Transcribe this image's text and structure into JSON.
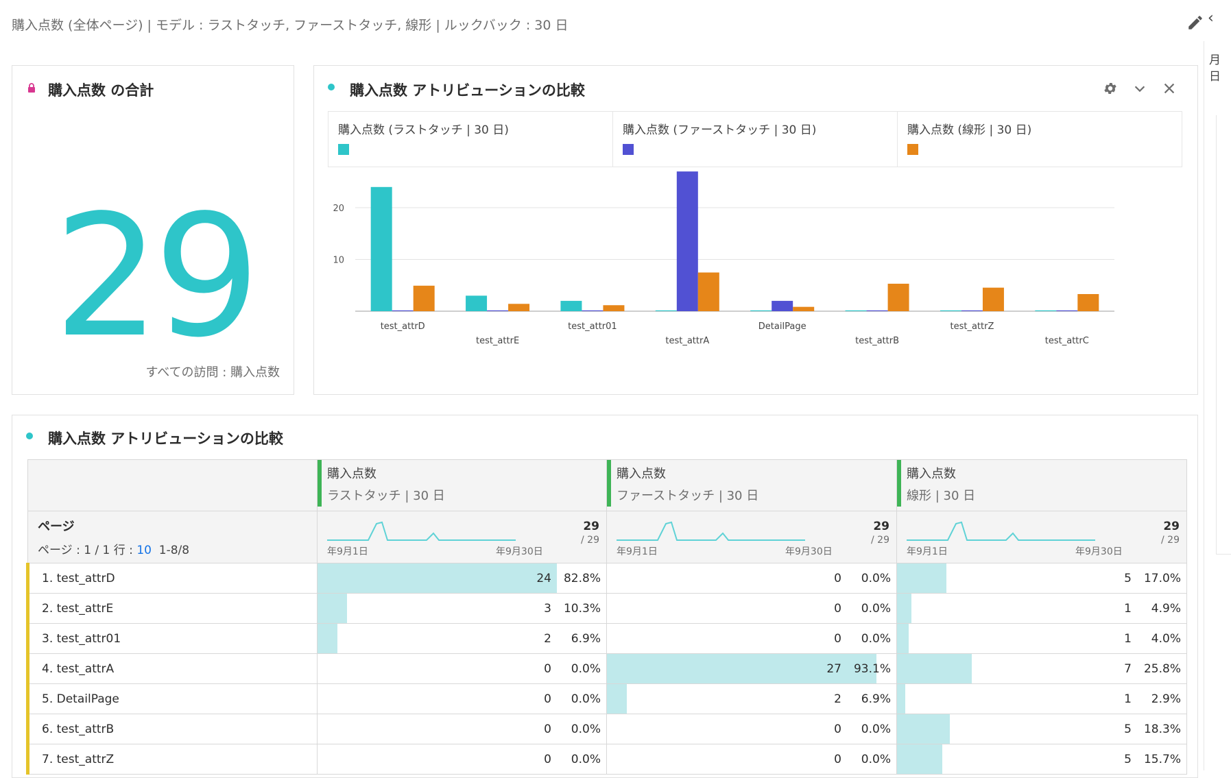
{
  "header": {
    "title": "購入点数 (全体ページ) | モデル : ラストタッチ, ファーストタッチ, 線形 | ルックバック : 30 日"
  },
  "rail": {
    "calendar_line1": "月",
    "calendar_line2": "日"
  },
  "summary": {
    "title": "購入点数 の合計",
    "value": "29",
    "footer": "すべての訪問 : 購入点数"
  },
  "chart_panel": {
    "title": "購入点数 アトリビューションの比較",
    "legend": [
      {
        "label": "購入点数 (ラストタッチ | 30 日)",
        "color": "#2ec5c9"
      },
      {
        "label": "購入点数 (ファーストタッチ | 30 日)",
        "color": "#5151d3"
      },
      {
        "label": "購入点数 (線形 | 30 日)",
        "color": "#e68619"
      }
    ]
  },
  "chart_data": {
    "type": "bar",
    "categories": [
      "test_attrD",
      "test_attrE",
      "test_attr01",
      "test_attrA",
      "DetailPage",
      "test_attrB",
      "test_attrZ",
      "test_attrC"
    ],
    "series": [
      {
        "name": "購入点数 (ラストタッチ | 30 日)",
        "color": "#2ec5c9",
        "values": [
          24,
          3,
          2,
          0,
          0,
          0,
          0,
          0
        ]
      },
      {
        "name": "購入点数 (ファーストタッチ | 30 日)",
        "color": "#5151d3",
        "values": [
          0,
          0,
          0,
          27,
          2,
          0,
          0,
          0
        ]
      },
      {
        "name": "購入点数 (線形 | 30 日)",
        "color": "#e68619",
        "values": [
          4.93,
          1.42,
          1.16,
          7.48,
          0.84,
          5.31,
          4.55,
          3.31
        ]
      }
    ],
    "yticks": [
      10,
      20
    ],
    "ylim": [
      0,
      30
    ],
    "grid": true
  },
  "table_panel": {
    "title": "購入点数 アトリビューションの比較",
    "dimension": "ページ",
    "pager_prefix": "ページ : 1 / 1 行 :",
    "rows_per_page": "10",
    "range": "1-8/8",
    "columns": [
      {
        "metric": "購入点数",
        "model": "ラストタッチ | 30 日",
        "total": "29",
        "sub": "/ 29",
        "start": "年9月1日",
        "end": "年9月30日"
      },
      {
        "metric": "購入点数",
        "model": "ファーストタッチ | 30 日",
        "total": "29",
        "sub": "/ 29",
        "start": "年9月1日",
        "end": "年9月30日"
      },
      {
        "metric": "購入点数",
        "model": "線形 | 30 日",
        "total": "29",
        "sub": "/ 29",
        "start": "年9月1日",
        "end": "年9月30日"
      }
    ],
    "rows": [
      {
        "name": "1. test_attrD",
        "cells": [
          {
            "v": "24",
            "p": "82.8%",
            "f": 0.828
          },
          {
            "v": "0",
            "p": "0.0%",
            "f": 0
          },
          {
            "v": "5",
            "p": "17.0%",
            "f": 0.17
          }
        ]
      },
      {
        "name": "2. test_attrE",
        "cells": [
          {
            "v": "3",
            "p": "10.3%",
            "f": 0.103
          },
          {
            "v": "0",
            "p": "0.0%",
            "f": 0
          },
          {
            "v": "1",
            "p": "4.9%",
            "f": 0.049
          }
        ]
      },
      {
        "name": "3. test_attr01",
        "cells": [
          {
            "v": "2",
            "p": "6.9%",
            "f": 0.069
          },
          {
            "v": "0",
            "p": "0.0%",
            "f": 0
          },
          {
            "v": "1",
            "p": "4.0%",
            "f": 0.04
          }
        ]
      },
      {
        "name": "4. test_attrA",
        "cells": [
          {
            "v": "0",
            "p": "0.0%",
            "f": 0
          },
          {
            "v": "27",
            "p": "93.1%",
            "f": 0.931
          },
          {
            "v": "7",
            "p": "25.8%",
            "f": 0.258
          }
        ]
      },
      {
        "name": "5. DetailPage",
        "cells": [
          {
            "v": "0",
            "p": "0.0%",
            "f": 0
          },
          {
            "v": "2",
            "p": "6.9%",
            "f": 0.069
          },
          {
            "v": "1",
            "p": "2.9%",
            "f": 0.029
          }
        ]
      },
      {
        "name": "6. test_attrB",
        "cells": [
          {
            "v": "0",
            "p": "0.0%",
            "f": 0
          },
          {
            "v": "0",
            "p": "0.0%",
            "f": 0
          },
          {
            "v": "5",
            "p": "18.3%",
            "f": 0.183
          }
        ]
      },
      {
        "name": "7. test_attrZ",
        "cells": [
          {
            "v": "0",
            "p": "0.0%",
            "f": 0
          },
          {
            "v": "0",
            "p": "0.0%",
            "f": 0
          },
          {
            "v": "5",
            "p": "15.7%",
            "f": 0.157
          }
        ]
      }
    ]
  }
}
